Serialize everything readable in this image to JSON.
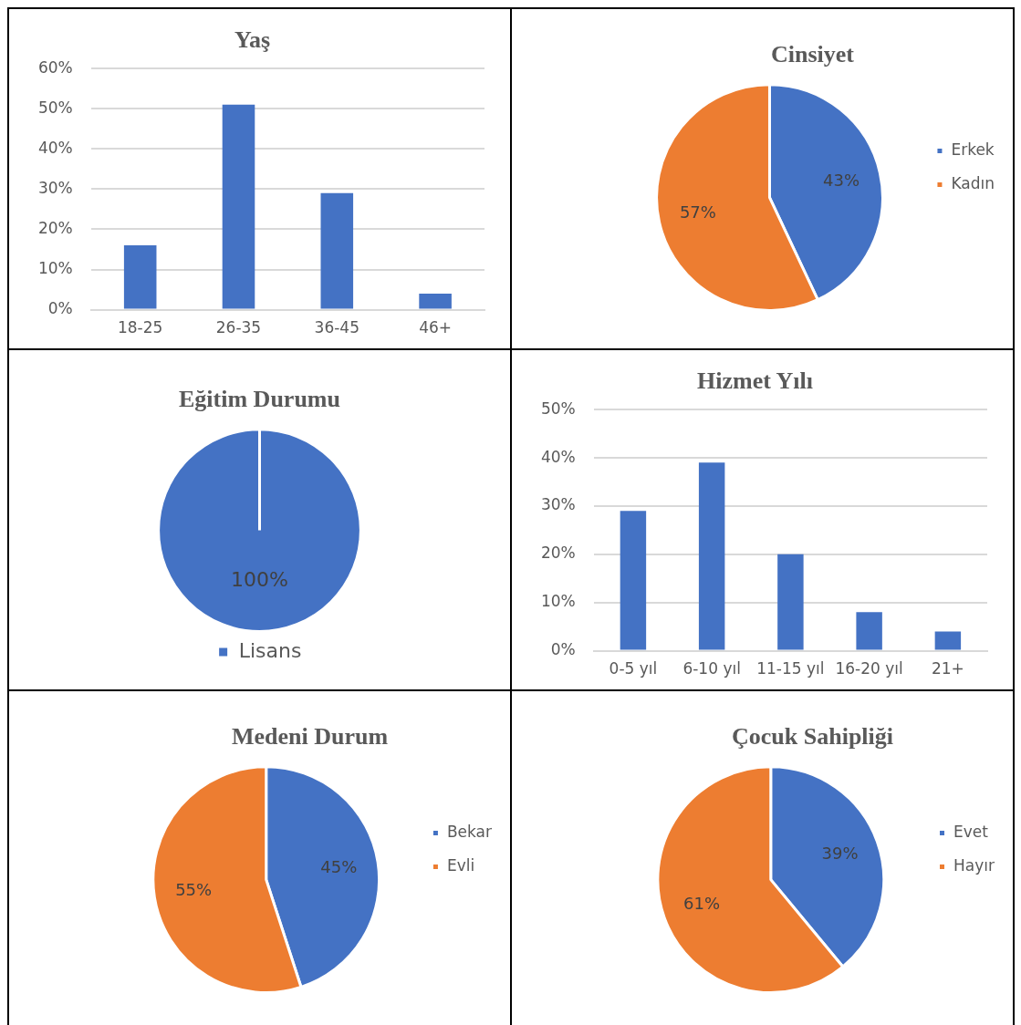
{
  "chart_data": [
    {
      "type": "bar",
      "title": "Yaş",
      "categories": [
        "18-25",
        "26-35",
        "36-45",
        "46+"
      ],
      "values": [
        16,
        51,
        29,
        4
      ],
      "color": "#4472c4",
      "ylim": [
        0,
        60
      ],
      "yticks": [
        {
          "value": 0,
          "label": "0%"
        },
        {
          "value": 10,
          "label": "10%"
        },
        {
          "value": 20,
          "label": "20%"
        },
        {
          "value": 30,
          "label": "30%"
        },
        {
          "value": 40,
          "label": "40%"
        },
        {
          "value": 50,
          "label": "50%"
        },
        {
          "value": 60,
          "label": "60%"
        }
      ],
      "grid": "y",
      "legend": false
    },
    {
      "type": "pie",
      "title": "Cinsiyet",
      "categories": [
        "Erkek",
        "Kadın"
      ],
      "values": [
        43,
        57
      ],
      "colors": [
        "#4472c4",
        "#ed7d31"
      ],
      "value_labels": [
        "43%",
        "57%"
      ],
      "legend": "right"
    },
    {
      "type": "pie",
      "title": "Eğitim Durumu",
      "categories": [
        "Lisans"
      ],
      "values": [
        100
      ],
      "colors": [
        "#4472c4"
      ],
      "value_labels": [
        "100%"
      ],
      "legend": "bottom"
    },
    {
      "type": "bar",
      "title": "Hizmet Yılı",
      "categories": [
        "0-5 yıl",
        "6-10 yıl",
        "11-15 yıl",
        "16-20 yıl",
        "21+"
      ],
      "values": [
        29,
        39,
        20,
        8,
        4
      ],
      "color": "#4472c4",
      "ylim": [
        0,
        50
      ],
      "yticks": [
        {
          "value": 0,
          "label": "0%"
        },
        {
          "value": 10,
          "label": "10%"
        },
        {
          "value": 20,
          "label": "20%"
        },
        {
          "value": 30,
          "label": "30%"
        },
        {
          "value": 40,
          "label": "40%"
        },
        {
          "value": 50,
          "label": "50%"
        }
      ],
      "grid": "y",
      "legend": false
    },
    {
      "type": "pie",
      "title": "Medeni Durum",
      "categories": [
        "Bekar",
        "Evli"
      ],
      "values": [
        45,
        55
      ],
      "colors": [
        "#4472c4",
        "#ed7d31"
      ],
      "value_labels": [
        "45%",
        "55%"
      ],
      "legend": "right"
    },
    {
      "type": "pie",
      "title": "Çocuk Sahipliği",
      "categories": [
        "Evet",
        "Hayır"
      ],
      "values": [
        39,
        61
      ],
      "colors": [
        "#4472c4",
        "#ed7d31"
      ],
      "value_labels": [
        "39%",
        "61%"
      ],
      "legend": "right"
    }
  ]
}
